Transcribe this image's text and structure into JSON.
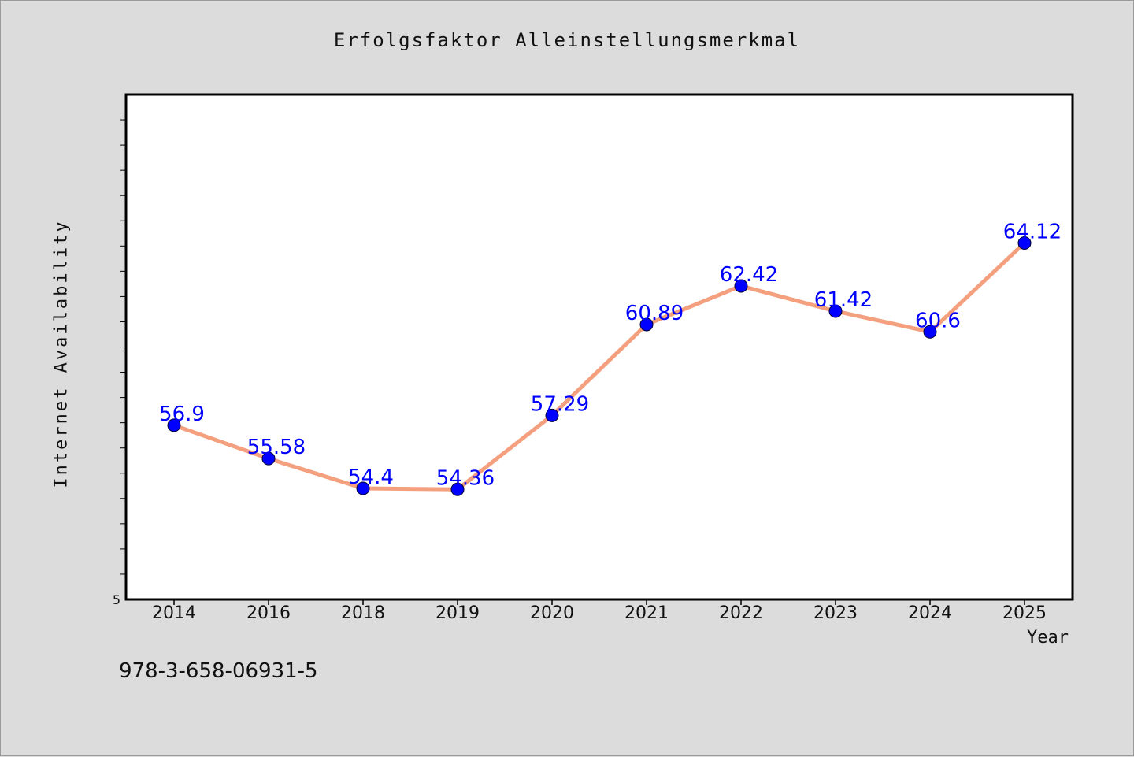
{
  "chart_data": {
    "type": "line",
    "title": "Erfolgsfaktor Alleinstellungsmerkmal",
    "xlabel": "Year",
    "ylabel": "Internet Availability",
    "categories": [
      "2014",
      "2016",
      "2018",
      "2019",
      "2020",
      "2021",
      "2022",
      "2023",
      "2024",
      "2025"
    ],
    "series": [
      {
        "values": [
          56.9,
          55.58,
          54.4,
          54.36,
          57.29,
          60.89,
          62.42,
          61.42,
          60.6,
          64.12
        ]
      }
    ],
    "data_labels": [
      "56.9",
      "55.58",
      "54.4",
      "54.36",
      "57.29",
      "60.89",
      "62.42",
      "61.42",
      "60.6",
      "64.12"
    ],
    "ytick_label_min": "5",
    "ylim": [
      50,
      70
    ],
    "grid": false,
    "line_color": "#f4a07f",
    "marker_color": "#0000ff",
    "label_color": "#0000ff"
  },
  "footnote": "978-3-658-06931-5"
}
